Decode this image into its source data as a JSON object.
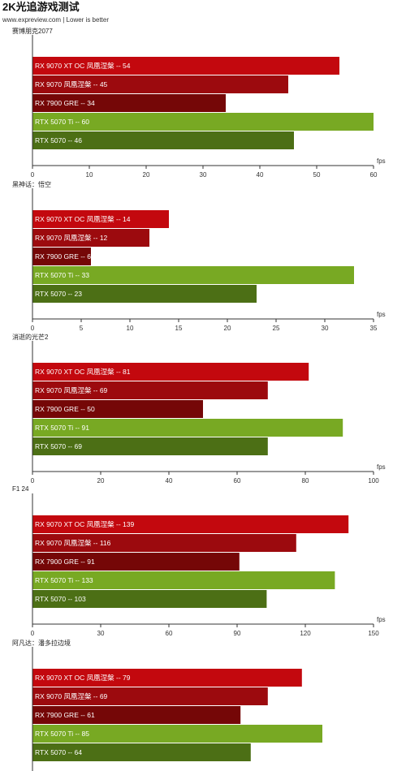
{
  "page": {
    "title": "2K光追游戏测试",
    "subtitle": "www.expreview.com | Lower is better"
  },
  "colors": {
    "rx9070xtoc": "#c3080e",
    "rx9070": "#9c0a0e",
    "rx7900gre": "#750707",
    "rtx5070ti": "#78a923",
    "rtx5070": "#4c6f15"
  },
  "chart_data": [
    {
      "type": "bar",
      "orientation": "horizontal",
      "title": "赛博朋克2077",
      "unit": "fps",
      "xlim": [
        0,
        60
      ],
      "ticks": [
        0,
        10,
        20,
        30,
        40,
        50,
        60
      ],
      "categories": [
        "RX 9070 XT OC 凤凰涅槃",
        "RX 9070 凤凰涅槃",
        "RX 7900 GRE",
        "RTX 5070 Ti",
        "RTX 5070"
      ],
      "values": [
        54,
        45,
        34,
        60,
        46
      ]
    },
    {
      "type": "bar",
      "orientation": "horizontal",
      "title": "黑神话：悟空",
      "unit": "fps",
      "xlim": [
        0,
        35
      ],
      "ticks": [
        0,
        5,
        10,
        15,
        20,
        25,
        30,
        35
      ],
      "categories": [
        "RX 9070 XT OC 凤凰涅槃",
        "RX 9070 凤凰涅槃",
        "RX 7900 GRE",
        "RTX 5070 Ti",
        "RTX 5070"
      ],
      "values": [
        14,
        12,
        6,
        33,
        23
      ]
    },
    {
      "type": "bar",
      "orientation": "horizontal",
      "title": "消逝的光芒2",
      "unit": "fps",
      "xlim": [
        0,
        100
      ],
      "ticks": [
        0,
        20,
        40,
        60,
        80,
        100
      ],
      "categories": [
        "RX 9070 XT OC 凤凰涅槃",
        "RX 9070 凤凰涅槃",
        "RX 7900 GRE",
        "RTX 5070 Ti",
        "RTX 5070"
      ],
      "values": [
        81,
        69,
        50,
        91,
        69
      ]
    },
    {
      "type": "bar",
      "orientation": "horizontal",
      "title": "F1 24",
      "unit": "fps",
      "xlim": [
        0,
        150
      ],
      "ticks": [
        0,
        30,
        60,
        90,
        120,
        150
      ],
      "categories": [
        "RX 9070 XT OC 凤凰涅槃",
        "RX 9070 凤凰涅槃",
        "RX 7900 GRE",
        "RTX 5070 Ti",
        "RTX 5070"
      ],
      "values": [
        139,
        116,
        91,
        133,
        103
      ]
    },
    {
      "type": "bar",
      "orientation": "horizontal",
      "title": "阿凡达：潘多拉边境",
      "unit": "fps",
      "xlim": [
        0,
        100
      ],
      "ticks": [],
      "categories": [
        "RX 9070 XT OC 凤凰涅槃",
        "RX 9070 凤凰涅槃",
        "RX 7900 GRE",
        "RTX 5070 Ti",
        "RTX 5070"
      ],
      "values": [
        79,
        69,
        61,
        85,
        64
      ]
    }
  ]
}
